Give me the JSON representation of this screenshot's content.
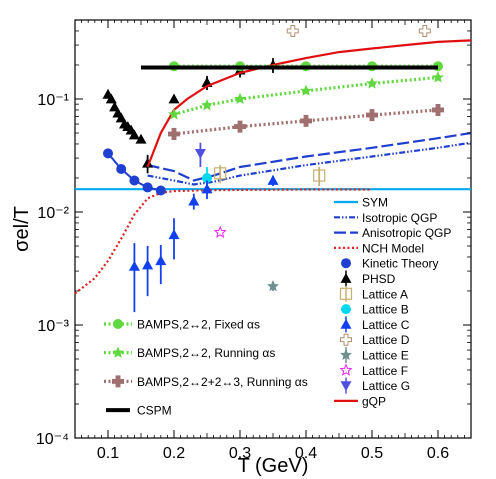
{
  "chart_data": {
    "type": "scatter",
    "xlabel": "T (GeV)",
    "ylabel": "σel/T",
    "xlim": [
      0.05,
      0.65
    ],
    "ylim": [
      0.0001,
      0.5
    ],
    "yscale": "log",
    "xticks": [
      "0.1",
      "0.2",
      "0.3",
      "0.4",
      "0.5",
      "0.6"
    ],
    "yticks": [
      "10⁻⁴",
      "10⁻³",
      "10⁻²",
      "10⁻¹"
    ],
    "grid": false,
    "series": [
      {
        "name": "SYM",
        "kind": "line",
        "color": "#00a8f0",
        "dash": "solid",
        "x": [
          0.05,
          0.65
        ],
        "y": [
          0.0159,
          0.0159
        ]
      },
      {
        "name": "Isotropic QGP",
        "kind": "line",
        "color": "#1f3fd0",
        "dash": "dashdotdot",
        "x": [
          0.16,
          0.2,
          0.23,
          0.26,
          0.3,
          0.4,
          0.5,
          0.6,
          0.65
        ],
        "y": [
          0.021,
          0.019,
          0.0175,
          0.0185,
          0.021,
          0.026,
          0.031,
          0.037,
          0.041
        ]
      },
      {
        "name": "Anisotropic QGP",
        "kind": "line",
        "color": "#1f3fd0",
        "dash": "longdash",
        "x": [
          0.16,
          0.2,
          0.23,
          0.26,
          0.3,
          0.4,
          0.5,
          0.6,
          0.65
        ],
        "y": [
          0.026,
          0.023,
          0.019,
          0.021,
          0.025,
          0.031,
          0.037,
          0.045,
          0.05
        ]
      },
      {
        "name": "NCH Model",
        "kind": "line",
        "color": "#e02020",
        "dash": "dotted",
        "x": [
          0.05,
          0.08,
          0.1,
          0.12,
          0.14,
          0.16,
          0.18,
          0.2,
          0.25,
          0.3,
          0.4,
          0.5
        ],
        "y": [
          0.0019,
          0.0026,
          0.0037,
          0.0058,
          0.0095,
          0.0132,
          0.0148,
          0.0153,
          0.0156,
          0.0157,
          0.0158,
          0.0158
        ]
      },
      {
        "name": "Kinetic Theory",
        "kind": "marker",
        "marker": "circle",
        "color": "#1f3fd0",
        "connect": true,
        "x": [
          0.1,
          0.12,
          0.14,
          0.16,
          0.18
        ],
        "y": [
          0.033,
          0.024,
          0.019,
          0.0165,
          0.0155
        ]
      },
      {
        "name": "PHSD",
        "kind": "marker",
        "marker": "triangle",
        "color": "#000000",
        "x": [
          0.1,
          0.105,
          0.11,
          0.115,
          0.12,
          0.125,
          0.13,
          0.135,
          0.14,
          0.15,
          0.16,
          0.2,
          0.25,
          0.3,
          0.35
        ],
        "y": [
          0.11,
          0.1,
          0.085,
          0.075,
          0.068,
          0.06,
          0.057,
          0.053,
          0.048,
          0.044,
          0.027,
          0.1,
          0.14,
          0.18,
          0.2
        ],
        "yerr": [
          0,
          0,
          0,
          0,
          0,
          0,
          0,
          0,
          0,
          0,
          0.005,
          0,
          0.02,
          0.025,
          0.03
        ]
      },
      {
        "name": "Lattice A",
        "kind": "marker",
        "marker": "square-open",
        "color": "#c8b070",
        "x": [
          0.27,
          0.42
        ],
        "y": [
          0.022,
          0.021
        ],
        "yerr": [
          0.004,
          0.004
        ]
      },
      {
        "name": "Lattice B",
        "kind": "marker",
        "marker": "circle",
        "color": "#00d8f0",
        "x": [
          0.25
        ],
        "y": [
          0.02
        ],
        "yerr": [
          0.005
        ]
      },
      {
        "name": "Lattice C",
        "kind": "marker",
        "marker": "triangle",
        "color": "#1040f0",
        "x": [
          0.14,
          0.16,
          0.18,
          0.2,
          0.23,
          0.25,
          0.35
        ],
        "y": [
          0.0033,
          0.0034,
          0.0037,
          0.0063,
          0.0125,
          0.016,
          0.019
        ],
        "yerr": [
          0.002,
          0.0016,
          0.0014,
          0.0025,
          0.002,
          0.003,
          0.002
        ]
      },
      {
        "name": "Lattice D",
        "kind": "marker",
        "marker": "plus-open",
        "color": "#b09070",
        "x": [
          0.38,
          0.58
        ],
        "y": [
          0.4,
          0.4
        ]
      },
      {
        "name": "Lattice E",
        "kind": "marker",
        "marker": "star",
        "color": "#709090",
        "x": [
          0.35
        ],
        "y": [
          0.0022
        ],
        "yerr": [
          0.0002
        ]
      },
      {
        "name": "Lattice F",
        "kind": "marker",
        "marker": "star-open",
        "color": "#f020f0",
        "x": [
          0.27
        ],
        "y": [
          0.0066
        ]
      },
      {
        "name": "Lattice G",
        "kind": "marker",
        "marker": "triangle-down",
        "color": "#5050e0",
        "x": [
          0.24
        ],
        "y": [
          0.033
        ],
        "yerr": [
          0.008
        ]
      },
      {
        "name": "gQP",
        "kind": "line",
        "color": "#e01010",
        "dash": "solid",
        "x": [
          0.16,
          0.18,
          0.2,
          0.22,
          0.25,
          0.3,
          0.35,
          0.4,
          0.45,
          0.5,
          0.55,
          0.6,
          0.65
        ],
        "y": [
          0.025,
          0.05,
          0.08,
          0.1,
          0.13,
          0.17,
          0.2,
          0.23,
          0.26,
          0.28,
          0.3,
          0.32,
          0.33
        ]
      },
      {
        "name": "BAMPS,2↔2, Fixed αs",
        "kind": "marker",
        "marker": "circle",
        "color": "#60d840",
        "connect": true,
        "connect_dash": "dotted",
        "x": [
          0.2,
          0.3,
          0.4,
          0.5,
          0.6
        ],
        "y": [
          0.195,
          0.195,
          0.195,
          0.195,
          0.195
        ]
      },
      {
        "name": "BAMPS,2↔2, Running αs",
        "kind": "marker",
        "marker": "star",
        "color": "#60d840",
        "connect": true,
        "connect_dash": "dotted",
        "x": [
          0.2,
          0.25,
          0.3,
          0.4,
          0.5,
          0.6
        ],
        "y": [
          0.073,
          0.088,
          0.1,
          0.118,
          0.137,
          0.155
        ]
      },
      {
        "name": "BAMPS,2↔2+2↔3, Running αs",
        "kind": "marker",
        "marker": "plus",
        "color": "#a07070",
        "connect": true,
        "connect_dash": "dotted",
        "x": [
          0.2,
          0.3,
          0.4,
          0.5,
          0.6
        ],
        "y": [
          0.049,
          0.057,
          0.064,
          0.072,
          0.08
        ]
      },
      {
        "name": "CSPM",
        "kind": "line",
        "color": "#000000",
        "dash": "solid",
        "width": 4,
        "x": [
          0.15,
          0.6
        ],
        "y": [
          0.19,
          0.19
        ]
      }
    ],
    "legend_right": [
      "SYM",
      "Isotropic QGP",
      "Anisotropic QGP",
      "NCH Model",
      "Kinetic Theory",
      "PHSD",
      "Lattice A",
      "Lattice B",
      "Lattice C",
      "Lattice D",
      "Lattice E",
      "Lattice F",
      "Lattice G",
      "gQP"
    ],
    "legend_left": [
      "BAMPS,2↔2, Fixed αs",
      "BAMPS,2↔2, Running αs",
      "BAMPS,2↔2+2↔3, Running αs",
      "CSPM"
    ]
  }
}
